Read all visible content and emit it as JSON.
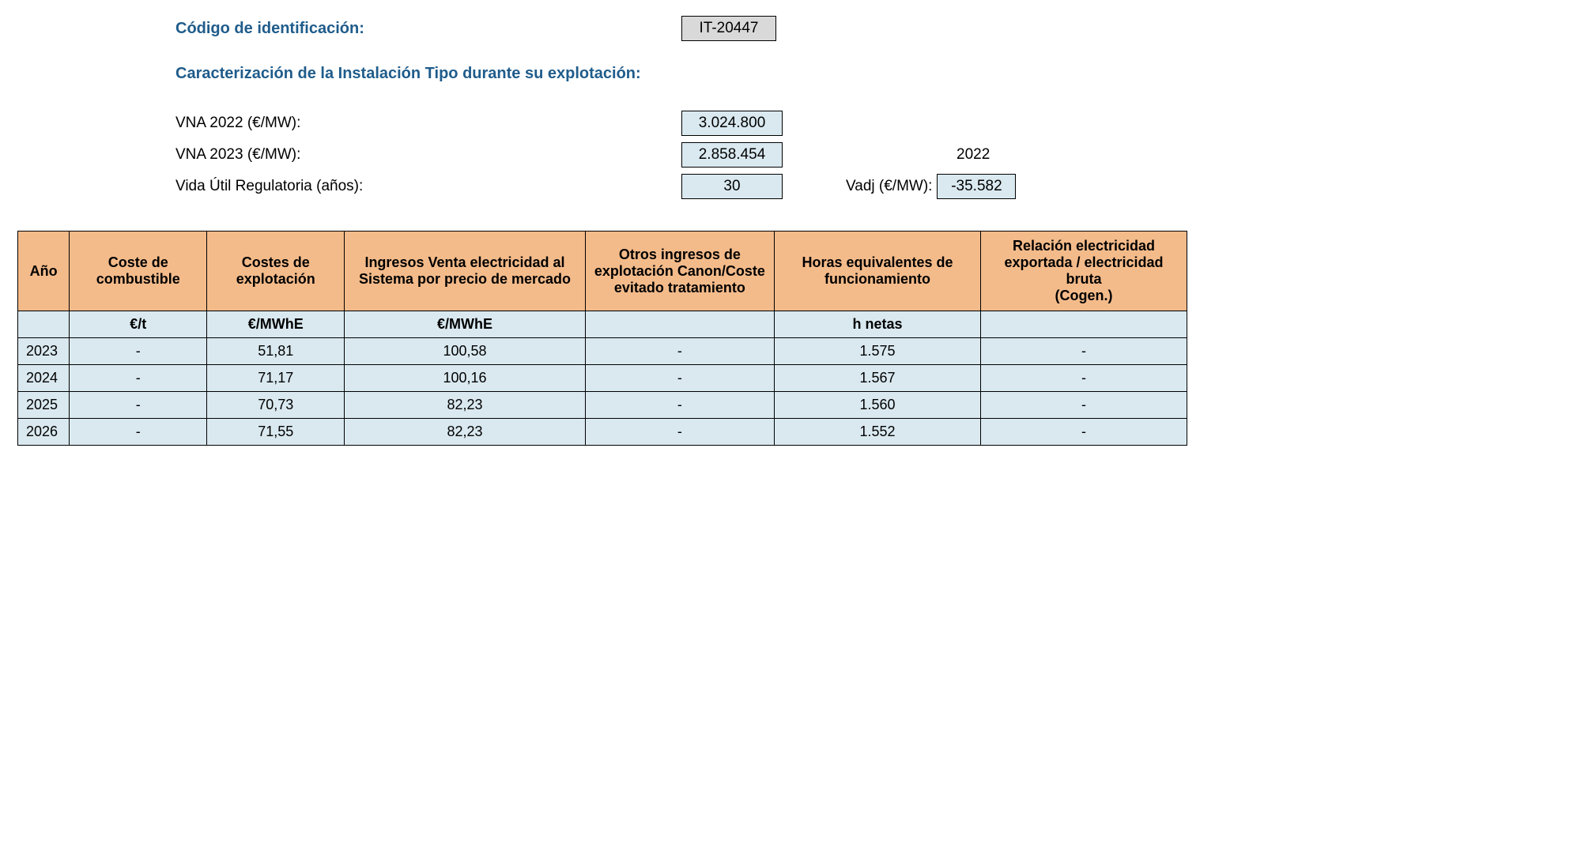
{
  "header": {
    "id_label": "Código de identificación:",
    "id_value": "IT-20447",
    "subtitle": "Caracterización de la Instalación Tipo durante su explotación:"
  },
  "params": {
    "vna2022_label": "VNA 2022 (€/MW):",
    "vna2022_value": "3.024.800",
    "vna2023_label": "VNA 2023 (€/MW):",
    "vna2023_value": "2.858.454",
    "vida_label": "Vida Útil Regulatoria (años):",
    "vida_value": "30",
    "year_text": "2022",
    "vadj_label": "Vadj (€/MW):",
    "vadj_value": "-35.582"
  },
  "table": {
    "headers": {
      "year": "Año",
      "fuel": "Coste de combustible",
      "explot": "Costes de explotación",
      "ingresos": "Ingresos Venta electricidad al Sistema por precio de mercado",
      "otros": "Otros ingresos de explotación Canon/Coste evitado tratamiento",
      "horas": "Horas equivalentes de funcionamiento",
      "relacion": "Relación electricidad exportada / electricidad bruta\n(Cogen.)"
    },
    "units": {
      "year": "",
      "fuel": "€/t",
      "explot": "€/MWhE",
      "ingresos": "€/MWhE",
      "otros": "",
      "horas": "h netas",
      "relacion": ""
    },
    "rows": [
      {
        "year": "2023",
        "fuel": "-",
        "explot": "51,81",
        "ingresos": "100,58",
        "otros": "-",
        "horas": "1.575",
        "relacion": "-"
      },
      {
        "year": "2024",
        "fuel": "-",
        "explot": "71,17",
        "ingresos": "100,16",
        "otros": "-",
        "horas": "1.567",
        "relacion": "-"
      },
      {
        "year": "2025",
        "fuel": "-",
        "explot": "70,73",
        "ingresos": "82,23",
        "otros": "-",
        "horas": "1.560",
        "relacion": "-"
      },
      {
        "year": "2026",
        "fuel": "-",
        "explot": "71,55",
        "ingresos": "82,23",
        "otros": "-",
        "horas": "1.552",
        "relacion": "-"
      }
    ]
  },
  "colors": {
    "title_color": "#1f5c8b",
    "id_box_bg": "#d9d9d9",
    "value_box_bg": "#dae9f0",
    "header_bg": "#f4bb8a",
    "cell_bg": "#dae9f0",
    "border": "#000000",
    "page_bg": "#ffffff"
  }
}
